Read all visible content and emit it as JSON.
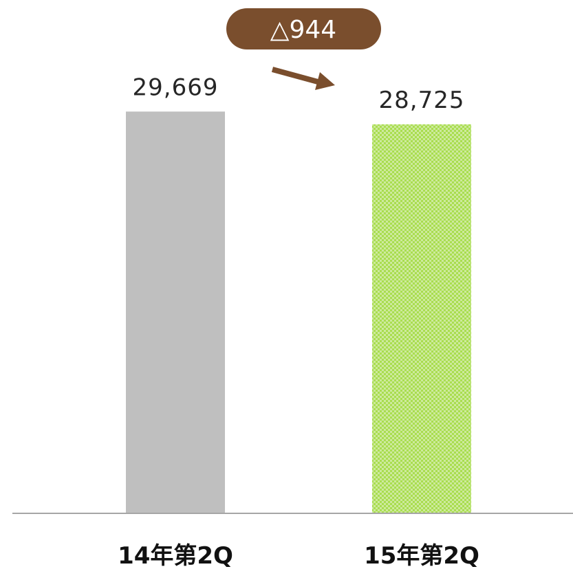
{
  "chart_data": {
    "type": "bar",
    "categories": [
      "14年第2Q",
      "15年第2Q"
    ],
    "values": [
      29669,
      28725
    ],
    "value_labels": [
      "29,669",
      "28,725"
    ],
    "ylim": [
      0,
      30500
    ],
    "grid": false,
    "bar_colors": [
      "#bfbfbf",
      "#a9dd4f"
    ],
    "bar_patterns": [
      "solid",
      "checker"
    ],
    "annotation": {
      "text": "△944",
      "color": "#7a4e2d",
      "icon": "arrow-right-down-icon"
    },
    "axis_color": "#a6a6a6"
  }
}
